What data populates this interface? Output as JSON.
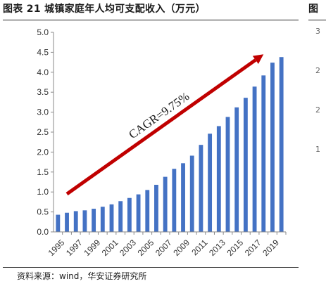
{
  "page": {
    "title": "图表 21 城镇家庭年人均可支配收入（万元）",
    "next_title": "图",
    "next_axis_labels": [
      "3",
      "2",
      "2",
      "1"
    ],
    "source": "资料来源：wind，华安证券研究所"
  },
  "chart_data": {
    "type": "bar",
    "title": "图表 21 城镇家庭年人均可支配收入（万元）",
    "xlabel": "",
    "ylabel": "",
    "ylim": [
      0,
      5
    ],
    "yticks": [
      "0.0",
      "0.5",
      "1.0",
      "1.5",
      "2.0",
      "2.5",
      "3.0",
      "3.5",
      "4.0",
      "4.5",
      "5.0"
    ],
    "ytick_values": [
      0,
      0.5,
      1,
      1.5,
      2,
      2.5,
      3,
      3.5,
      4,
      4.5,
      5
    ],
    "grid": false,
    "legend": "none",
    "categories": [
      "1995",
      "1996",
      "1997",
      "1998",
      "1999",
      "2000",
      "2001",
      "2002",
      "2003",
      "2004",
      "2005",
      "2006",
      "2007",
      "2008",
      "2009",
      "2010",
      "2011",
      "2012",
      "2013",
      "2014",
      "2015",
      "2016",
      "2017",
      "2018",
      "2019",
      "2020"
    ],
    "xtick_labels": [
      "1995",
      "1997",
      "1999",
      "2001",
      "2003",
      "2005",
      "2007",
      "2009",
      "2011",
      "2013",
      "2015",
      "2017",
      "2019"
    ],
    "values": [
      0.43,
      0.48,
      0.52,
      0.54,
      0.58,
      0.63,
      0.69,
      0.77,
      0.85,
      0.94,
      1.05,
      1.18,
      1.38,
      1.58,
      1.72,
      1.91,
      2.18,
      2.46,
      2.65,
      2.88,
      3.12,
      3.36,
      3.64,
      3.92,
      4.24,
      4.38
    ],
    "bar_color": "#4472C4",
    "arrow_color": "#C00000",
    "annotation": "CAGR=9.75%",
    "arrow": {
      "from": [
        "1996",
        0.95
      ],
      "to": [
        "2018",
        4.45
      ]
    }
  }
}
